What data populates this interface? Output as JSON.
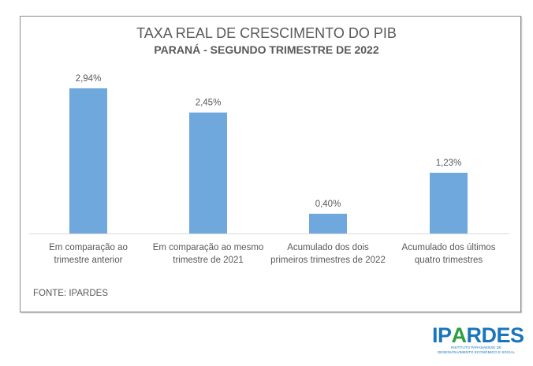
{
  "chart_data": {
    "type": "bar",
    "title": "TAXA REAL DE CRESCIMENTO DO PIB",
    "subtitle": "PARANÁ - SEGUNDO TRIMESTRE DE 2022",
    "categories": [
      "Em comparação ao trimestre anterior",
      "Em comparação ao mesmo trimestre de 2021",
      "Acumulado dos dois primeiros trimestres de 2022",
      "Acumulado dos últimos quatro trimestres"
    ],
    "values": [
      2.94,
      2.45,
      0.4,
      1.23
    ],
    "data_labels": [
      "2,94%",
      "2,45%",
      "0,40%",
      "1,23%"
    ],
    "ylim": [
      0,
      3.5
    ],
    "grid": false,
    "bar_color": "#6fa8dc",
    "source": "FONTE: IPARDES"
  },
  "logo": {
    "name_a": "IP",
    "name_b": "A",
    "name_c": "RDES",
    "tagline_1": "INSTITUTO PARANAENSE DE",
    "tagline_2": "DESENVOLVIMENTO ECONÔMICO E SOCIAL"
  }
}
